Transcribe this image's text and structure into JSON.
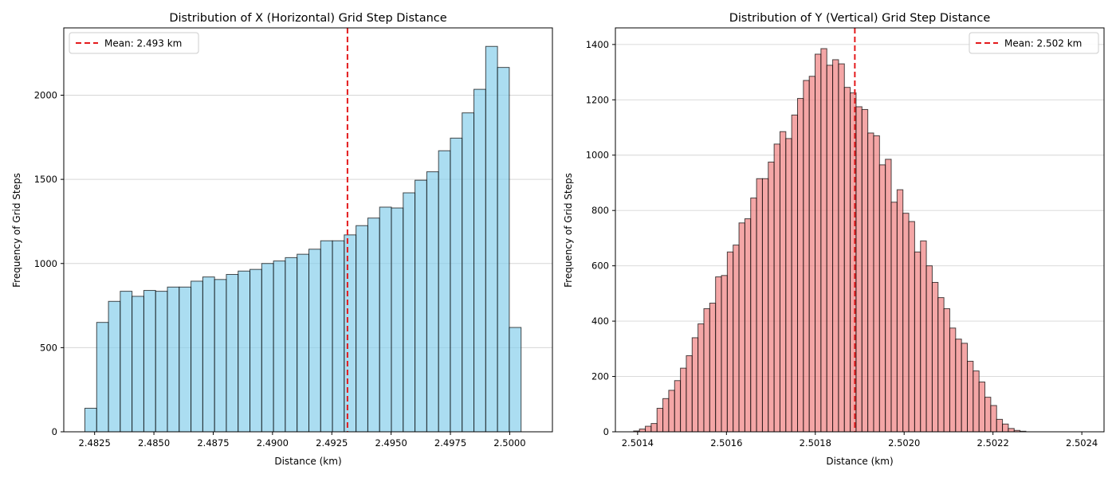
{
  "chart_data": [
    {
      "type": "bar",
      "subtype": "histogram",
      "title": "Distribution of X (Horizontal) Grid Step Distance",
      "xlabel": "Distance (km)",
      "ylabel": "Frequency of Grid Steps",
      "xlim": [
        2.4812,
        2.5018
      ],
      "ylim": [
        0,
        2400
      ],
      "xticks": [
        2.4825,
        2.485,
        2.4875,
        2.49,
        2.4925,
        2.495,
        2.4975,
        2.5
      ],
      "xtick_labels": [
        "2.4825",
        "2.4850",
        "2.4875",
        "2.4900",
        "2.4925",
        "2.4950",
        "2.4975",
        "2.5000"
      ],
      "yticks": [
        0,
        500,
        1000,
        1500,
        2000
      ],
      "ytick_labels": [
        "0",
        "500",
        "1000",
        "1500",
        "2000"
      ],
      "grid": "y",
      "legend_position": "upper left",
      "bar_color": "#87ceeb",
      "bar_edge_color": "#000000",
      "bin_start": 2.48209,
      "bin_width": 0.000497,
      "values": [
        140,
        650,
        775,
        835,
        805,
        840,
        835,
        860,
        860,
        895,
        920,
        905,
        935,
        955,
        965,
        1000,
        1015,
        1035,
        1055,
        1085,
        1135,
        1135,
        1170,
        1225,
        1270,
        1335,
        1330,
        1420,
        1495,
        1545,
        1670,
        1745,
        1895,
        2035,
        2290,
        2165,
        620
      ],
      "mean": {
        "value": 2.49316,
        "label": "Mean: 2.493 km",
        "color": "#e41a1c"
      }
    },
    {
      "type": "bar",
      "subtype": "histogram",
      "title": "Distribution of Y (Vertical) Grid Step Distance",
      "xlabel": "Distance (km)",
      "ylabel": "Frequency of Grid Steps",
      "xlim": [
        2.50135,
        2.50245
      ],
      "ylim": [
        0,
        1460
      ],
      "xticks": [
        2.5014,
        2.5016,
        2.5018,
        2.502,
        2.5022,
        2.5024
      ],
      "xtick_labels": [
        "2.5014",
        "2.5016",
        "2.5018",
        "2.5020",
        "2.5022",
        "2.5024"
      ],
      "yticks": [
        0,
        200,
        400,
        600,
        800,
        1000,
        1200,
        1400
      ],
      "ytick_labels": [
        "0",
        "200",
        "400",
        "600",
        "800",
        "1000",
        "1200",
        "1400"
      ],
      "grid": "y",
      "legend_position": "upper right",
      "bar_color": "#f08080",
      "bar_edge_color": "#000000",
      "bin_start": 2.501391,
      "bin_width": 1.318e-05,
      "values": [
        3,
        10,
        20,
        30,
        85,
        120,
        150,
        185,
        230,
        275,
        340,
        390,
        445,
        465,
        560,
        565,
        650,
        675,
        755,
        770,
        845,
        915,
        915,
        975,
        1040,
        1085,
        1060,
        1145,
        1205,
        1270,
        1285,
        1365,
        1385,
        1325,
        1345,
        1330,
        1245,
        1225,
        1175,
        1165,
        1080,
        1070,
        965,
        985,
        830,
        875,
        790,
        760,
        650,
        690,
        600,
        540,
        485,
        445,
        375,
        335,
        320,
        255,
        220,
        180,
        125,
        95,
        45,
        28,
        12,
        5,
        2
      ],
      "mean": {
        "value": 2.501889,
        "label": "Mean: 2.502 km",
        "color": "#e41a1c"
      }
    }
  ]
}
